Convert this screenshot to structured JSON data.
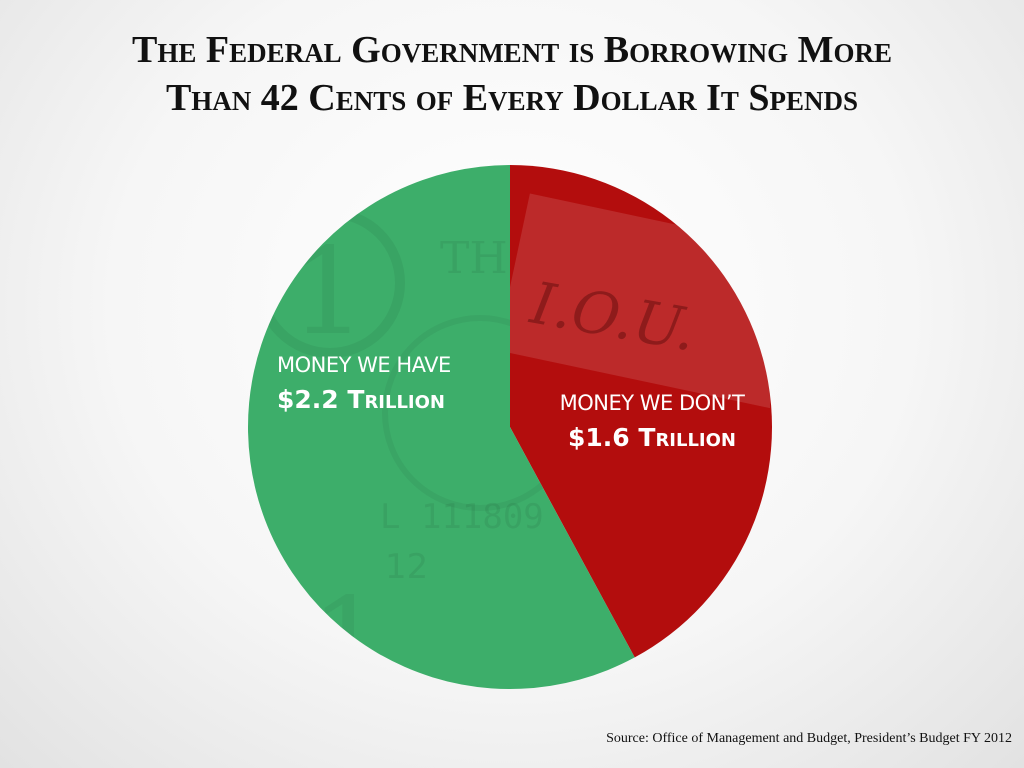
{
  "title_line1": "The Federal Government is Borrowing More",
  "title_line2": "Than 42 Cents of Every Dollar It Spends",
  "source": "Source: Office of Management and Budget, President’s Budget FY 2012",
  "colors": {
    "have": "#3dae6a",
    "dont": "#b30d0d",
    "text": "#111111",
    "label": "#ffffff"
  },
  "chart_data": {
    "type": "pie",
    "title": "The Federal Government is Borrowing More Than 42 Cents of Every Dollar It Spends",
    "slices": [
      {
        "caption": "MONEY WE DON’T",
        "amount_label": "$1.6 Trillion",
        "value": 1.6,
        "unit": "trillion USD",
        "color": "#b30d0d",
        "background_image": "IOU note"
      },
      {
        "caption": "MONEY WE HAVE",
        "amount_label": "$2.2 Trillion",
        "value": 2.2,
        "unit": "trillion USD",
        "color": "#3dae6a",
        "background_image": "dollar bill"
      }
    ],
    "start_angle": "12 o'clock",
    "direction": "clockwise",
    "legend": "none"
  }
}
